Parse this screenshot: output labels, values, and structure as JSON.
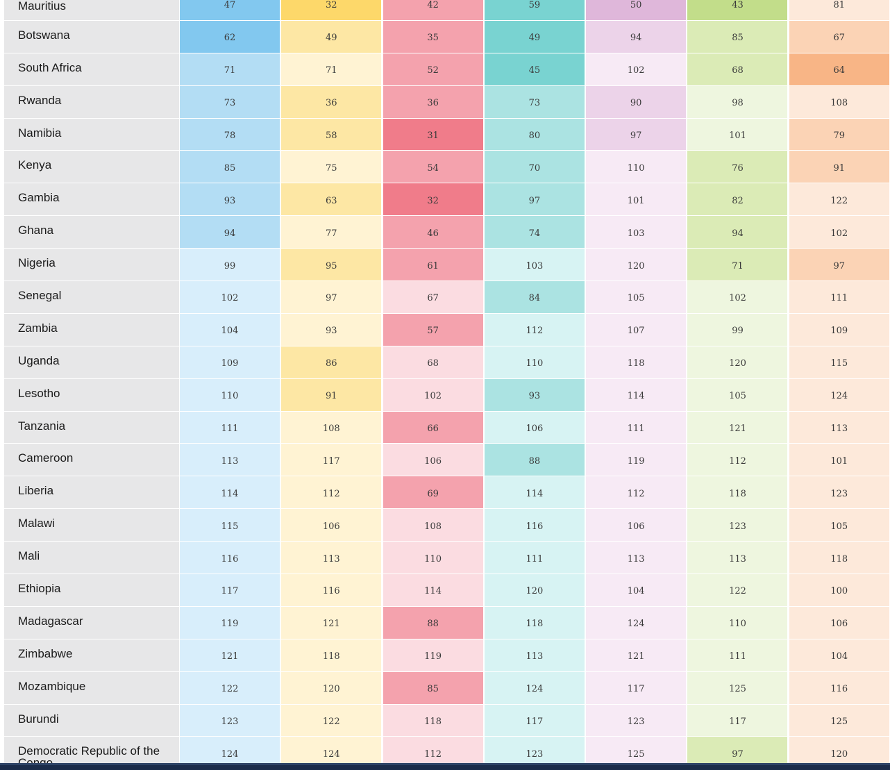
{
  "colors": {
    "col1": {
      "dark": "#82c8ef",
      "mid": "#b3ddf4",
      "light": "#d8eefb"
    },
    "col2": {
      "dark": "#fdd86a",
      "mid": "#fde7a4",
      "light": "#fff3d3"
    },
    "col3": {
      "dark": "#f07c8a",
      "mid": "#f4a2ad",
      "light": "#fbdce1"
    },
    "col4": {
      "dark": "#79d3d1",
      "mid": "#abe3e2",
      "light": "#d7f3f3"
    },
    "col5": {
      "dark": "#dfb7da",
      "mid": "#ecd3e9",
      "light": "#f7eaf5"
    },
    "col6": {
      "dark": "#c2dd8a",
      "mid": "#dbebb6",
      "light": "#eef6df"
    },
    "col7": {
      "dark": "#f8b586",
      "mid": "#fbd3b5",
      "light": "#fde9da"
    }
  },
  "rows": [
    {
      "country": "Mauritius",
      "values": [
        "47",
        "32",
        "42",
        "59",
        "50",
        "43",
        "81"
      ],
      "shade": [
        "dark",
        "dark",
        "mid",
        "dark",
        "dark",
        "dark",
        "light"
      ]
    },
    {
      "country": "Botswana",
      "values": [
        "62",
        "49",
        "35",
        "49",
        "94",
        "85",
        "67"
      ],
      "shade": [
        "dark",
        "mid",
        "mid",
        "dark",
        "mid",
        "mid",
        "mid"
      ]
    },
    {
      "country": "South Africa",
      "values": [
        "71",
        "71",
        "52",
        "45",
        "102",
        "68",
        "64"
      ],
      "shade": [
        "mid",
        "light",
        "mid",
        "dark",
        "light",
        "mid",
        "dark"
      ]
    },
    {
      "country": "Rwanda",
      "values": [
        "73",
        "36",
        "36",
        "73",
        "90",
        "98",
        "108"
      ],
      "shade": [
        "mid",
        "mid",
        "mid",
        "mid",
        "mid",
        "light",
        "light"
      ]
    },
    {
      "country": "Namibia",
      "values": [
        "78",
        "58",
        "31",
        "80",
        "97",
        "101",
        "79"
      ],
      "shade": [
        "mid",
        "mid",
        "dark",
        "mid",
        "mid",
        "light",
        "mid"
      ]
    },
    {
      "country": "Kenya",
      "values": [
        "85",
        "75",
        "54",
        "70",
        "110",
        "76",
        "91"
      ],
      "shade": [
        "mid",
        "light",
        "mid",
        "mid",
        "light",
        "mid",
        "mid"
      ]
    },
    {
      "country": "Gambia",
      "values": [
        "93",
        "63",
        "32",
        "97",
        "101",
        "82",
        "122"
      ],
      "shade": [
        "mid",
        "mid",
        "dark",
        "mid",
        "light",
        "mid",
        "light"
      ]
    },
    {
      "country": "Ghana",
      "values": [
        "94",
        "77",
        "46",
        "74",
        "103",
        "94",
        "102"
      ],
      "shade": [
        "mid",
        "light",
        "mid",
        "mid",
        "light",
        "mid",
        "light"
      ]
    },
    {
      "country": "Nigeria",
      "values": [
        "99",
        "95",
        "61",
        "103",
        "120",
        "71",
        "97"
      ],
      "shade": [
        "light",
        "mid",
        "mid",
        "light",
        "light",
        "mid",
        "mid"
      ]
    },
    {
      "country": "Senegal",
      "values": [
        "102",
        "97",
        "67",
        "84",
        "105",
        "102",
        "111"
      ],
      "shade": [
        "light",
        "light",
        "light",
        "mid",
        "light",
        "light",
        "light"
      ]
    },
    {
      "country": "Zambia",
      "values": [
        "104",
        "93",
        "57",
        "112",
        "107",
        "99",
        "109"
      ],
      "shade": [
        "light",
        "light",
        "mid",
        "light",
        "light",
        "light",
        "light"
      ]
    },
    {
      "country": "Uganda",
      "values": [
        "109",
        "86",
        "68",
        "110",
        "118",
        "120",
        "115"
      ],
      "shade": [
        "light",
        "mid",
        "light",
        "light",
        "light",
        "light",
        "light"
      ]
    },
    {
      "country": "Lesotho",
      "values": [
        "110",
        "91",
        "102",
        "93",
        "114",
        "105",
        "124"
      ],
      "shade": [
        "light",
        "mid",
        "light",
        "mid",
        "light",
        "light",
        "light"
      ]
    },
    {
      "country": "Tanzania",
      "values": [
        "111",
        "108",
        "66",
        "106",
        "111",
        "121",
        "113"
      ],
      "shade": [
        "light",
        "light",
        "mid",
        "light",
        "light",
        "light",
        "light"
      ]
    },
    {
      "country": "Cameroon",
      "values": [
        "113",
        "117",
        "106",
        "88",
        "119",
        "112",
        "101"
      ],
      "shade": [
        "light",
        "light",
        "light",
        "mid",
        "light",
        "light",
        "light"
      ]
    },
    {
      "country": "Liberia",
      "values": [
        "114",
        "112",
        "69",
        "114",
        "112",
        "118",
        "123"
      ],
      "shade": [
        "light",
        "light",
        "mid",
        "light",
        "light",
        "light",
        "light"
      ]
    },
    {
      "country": "Malawi",
      "values": [
        "115",
        "106",
        "108",
        "116",
        "106",
        "123",
        "105"
      ],
      "shade": [
        "light",
        "light",
        "light",
        "light",
        "light",
        "light",
        "light"
      ]
    },
    {
      "country": "Mali",
      "values": [
        "116",
        "113",
        "110",
        "111",
        "113",
        "113",
        "118"
      ],
      "shade": [
        "light",
        "light",
        "light",
        "light",
        "light",
        "light",
        "light"
      ]
    },
    {
      "country": "Ethiopia",
      "values": [
        "117",
        "116",
        "114",
        "120",
        "104",
        "122",
        "100"
      ],
      "shade": [
        "light",
        "light",
        "light",
        "light",
        "light",
        "light",
        "light"
      ]
    },
    {
      "country": "Madagascar",
      "values": [
        "119",
        "121",
        "88",
        "118",
        "124",
        "110",
        "106"
      ],
      "shade": [
        "light",
        "light",
        "mid",
        "light",
        "light",
        "light",
        "light"
      ]
    },
    {
      "country": "Zimbabwe",
      "values": [
        "121",
        "118",
        "119",
        "113",
        "121",
        "111",
        "104"
      ],
      "shade": [
        "light",
        "light",
        "light",
        "light",
        "light",
        "light",
        "light"
      ]
    },
    {
      "country": "Mozambique",
      "values": [
        "122",
        "120",
        "85",
        "124",
        "117",
        "125",
        "116"
      ],
      "shade": [
        "light",
        "light",
        "mid",
        "light",
        "light",
        "light",
        "light"
      ]
    },
    {
      "country": "Burundi",
      "values": [
        "123",
        "122",
        "118",
        "117",
        "123",
        "117",
        "125"
      ],
      "shade": [
        "light",
        "light",
        "light",
        "light",
        "light",
        "light",
        "light"
      ]
    },
    {
      "country": "Democratic Republic of the Congo",
      "values": [
        "124",
        "124",
        "112",
        "123",
        "125",
        "97",
        "120"
      ],
      "shade": [
        "light",
        "light",
        "light",
        "light",
        "light",
        "mid",
        "light"
      ]
    }
  ]
}
